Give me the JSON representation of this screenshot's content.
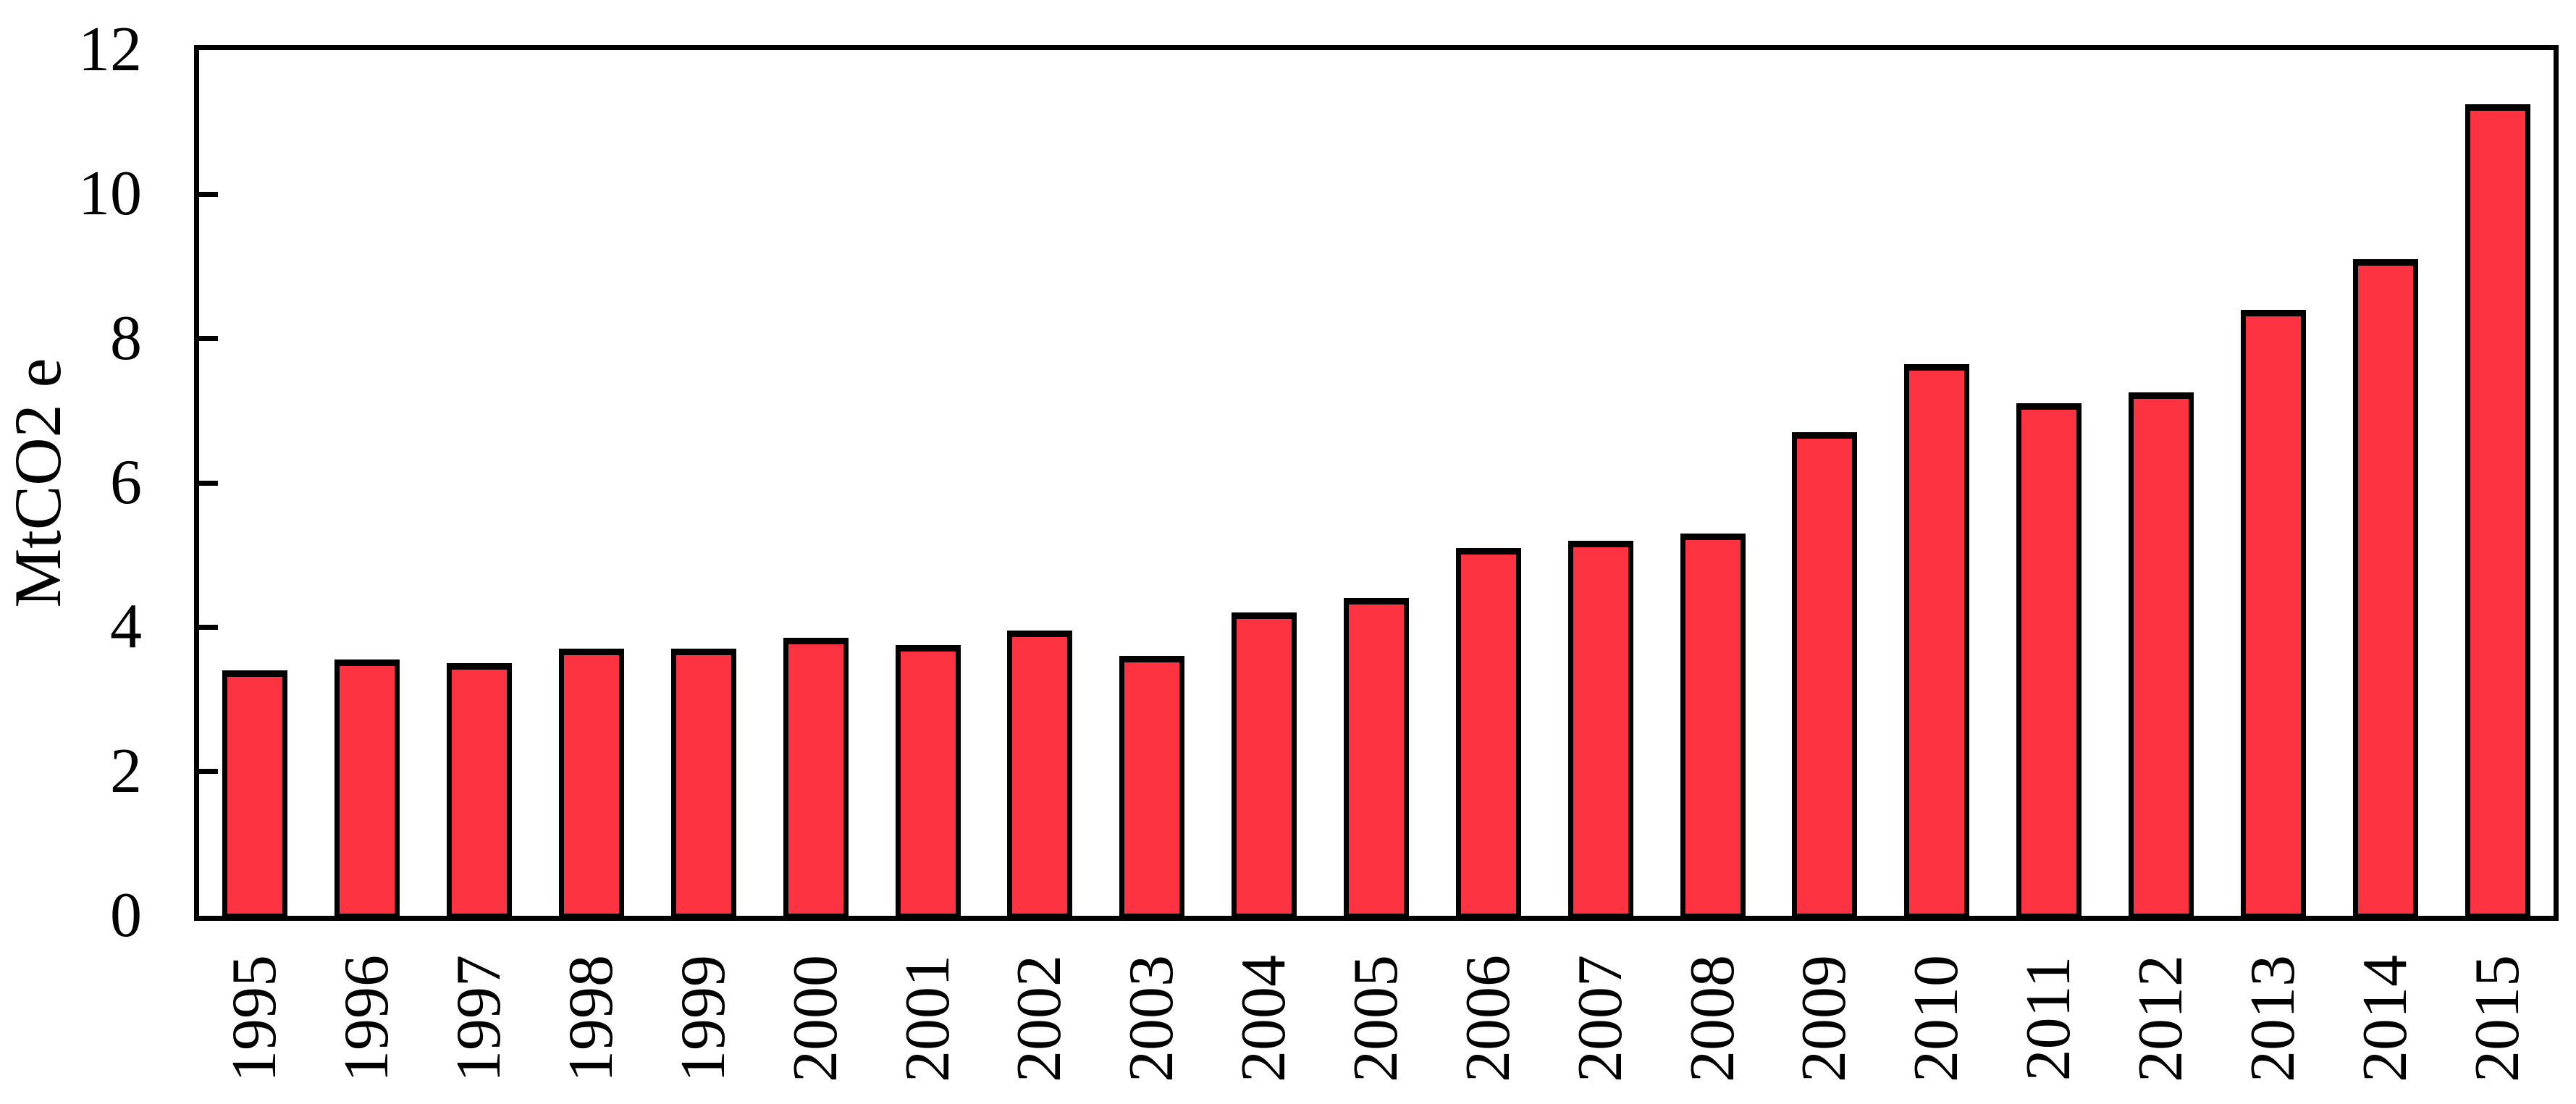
{
  "chart_data": {
    "type": "bar",
    "title": "",
    "xlabel": "",
    "ylabel": "MtCO2 e",
    "categories": [
      "1995",
      "1996",
      "1997",
      "1998",
      "1999",
      "2000",
      "2001",
      "2002",
      "2003",
      "2004",
      "2005",
      "2006",
      "2007",
      "2008",
      "2009",
      "2010",
      "2011",
      "2012",
      "2013",
      "2014",
      "2015"
    ],
    "values": [
      3.4,
      3.55,
      3.5,
      3.7,
      3.7,
      3.85,
      3.75,
      3.95,
      3.6,
      4.2,
      4.4,
      5.1,
      5.2,
      5.3,
      6.7,
      7.65,
      7.1,
      7.25,
      8.4,
      9.1,
      11.25
    ],
    "ylim": [
      0,
      12
    ],
    "yticks": [
      0,
      2,
      4,
      6,
      8,
      10,
      12
    ],
    "grid": false,
    "legend_position": "none",
    "x_tick_label_rotation_deg": 90,
    "colors": {
      "bar_fill": "#FD3342",
      "bar_border": "#000000",
      "axis": "#000000",
      "text": "#000000",
      "background": "#ffffff"
    }
  }
}
